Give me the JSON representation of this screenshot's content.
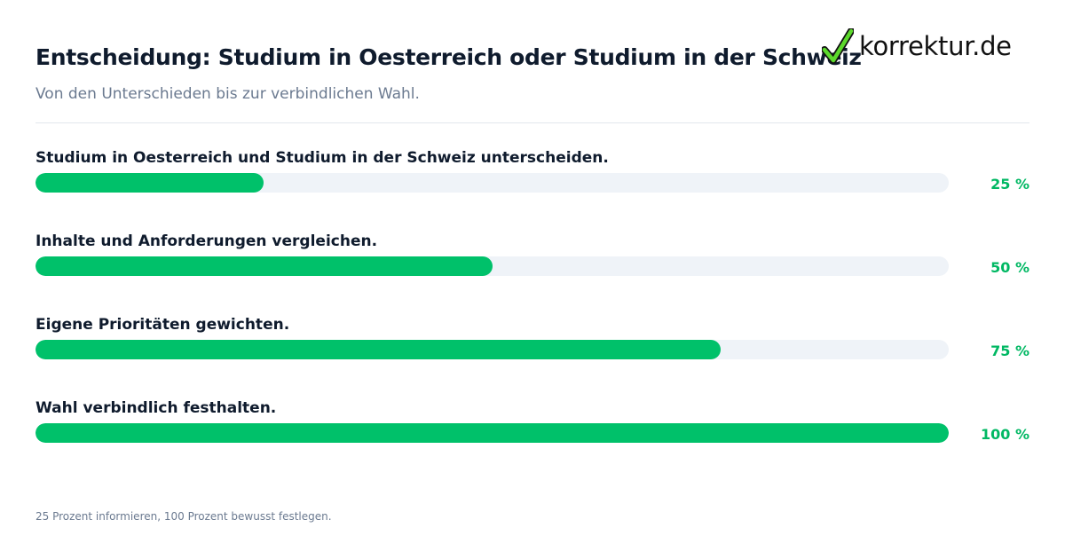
{
  "header": {
    "title": "Entscheidung: Studium in Oesterreich oder Studium in der Schweiz",
    "subtitle": "Von den Unterschieden bis zur verbindlichen Wahl."
  },
  "logo": {
    "text": "korrektur.de",
    "icon": "checkmark-icon",
    "check_color": "#5cd92c"
  },
  "colors": {
    "bar_fill": "#00c16a",
    "bar_track": "#eff3f8",
    "percent_text": "#00b863"
  },
  "chart_data": {
    "type": "bar",
    "orientation": "horizontal",
    "categories": [
      "Studium in Oesterreich und Studium in der Schweiz unterscheiden.",
      "Inhalte und Anforderungen vergleichen.",
      "Eigene Prioritäten gewichten.",
      "Wahl verbindlich festhalten."
    ],
    "values": [
      25,
      50,
      75,
      100
    ],
    "value_labels": [
      "25 %",
      "50 %",
      "75 %",
      "100 %"
    ],
    "xlim": [
      0,
      100
    ],
    "grid": false,
    "legend": "none"
  },
  "footer": {
    "note": "25 Prozent informieren, 100 Prozent bewusst festlegen."
  }
}
